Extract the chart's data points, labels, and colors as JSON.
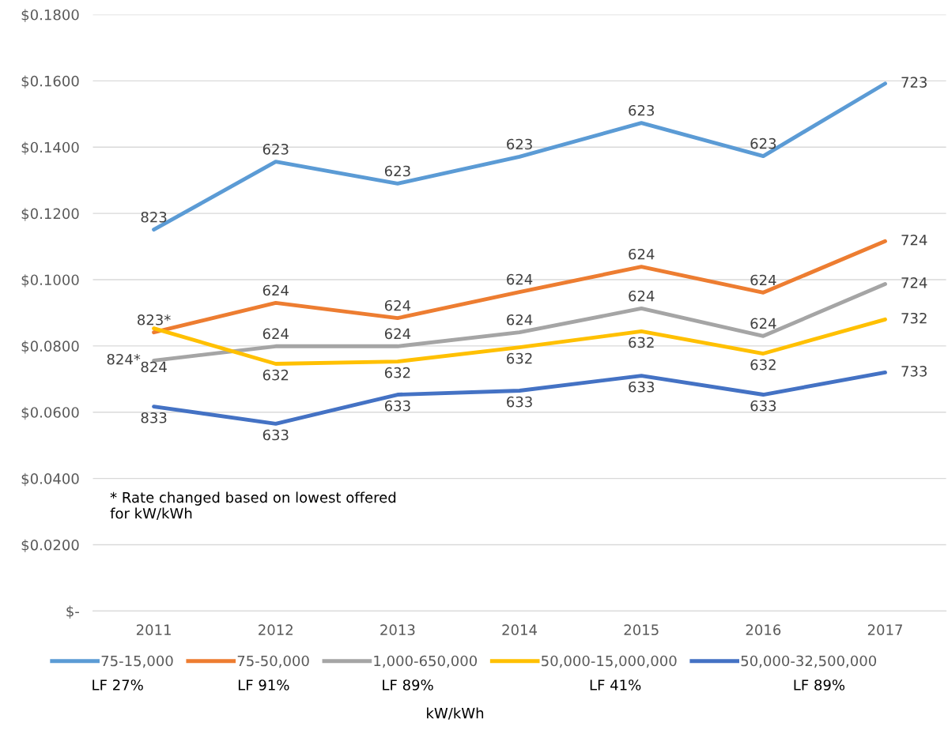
{
  "chart_data": {
    "type": "line",
    "categories": [
      "2011",
      "2012",
      "2013",
      "2014",
      "2015",
      "2016",
      "2017"
    ],
    "series": [
      {
        "name": "75-15,000",
        "color": "#5b9bd5",
        "values": [
          0.1151,
          0.1356,
          0.129,
          0.1371,
          0.1473,
          0.1373,
          0.1592
        ]
      },
      {
        "name": "75-50,000",
        "color": "#ed7d31",
        "values": [
          0.0841,
          0.093,
          0.0884,
          0.0963,
          0.1039,
          0.0961,
          0.1116
        ]
      },
      {
        "name": "1,000-650,000",
        "color": "#a5a5a5",
        "values": [
          0.0756,
          0.0799,
          0.0799,
          0.0841,
          0.0913,
          0.083,
          0.0987
        ]
      },
      {
        "name": "50,000-15,000,000",
        "color": "#ffc000",
        "values": [
          0.0853,
          0.0746,
          0.0753,
          0.0796,
          0.0844,
          0.0777,
          0.088
        ]
      },
      {
        "name": "50,000-32,500,000",
        "color": "#4472c4",
        "values": [
          0.0617,
          0.0565,
          0.0653,
          0.0665,
          0.071,
          0.0653,
          0.072
        ]
      }
    ],
    "ylim": [
      0,
      0.18
    ],
    "yticks": [
      {
        "value": 0,
        "label": "$-"
      },
      {
        "value": 0.02,
        "label": "$0.0200"
      },
      {
        "value": 0.04,
        "label": "$0.0400"
      },
      {
        "value": 0.06,
        "label": "$0.0600"
      },
      {
        "value": 0.08,
        "label": "$0.0800"
      },
      {
        "value": 0.1,
        "label": "$0.1000"
      },
      {
        "value": 0.12,
        "label": "$0.1200"
      },
      {
        "value": 0.14,
        "label": "$0.1400"
      },
      {
        "value": 0.16,
        "label": "$0.1600"
      },
      {
        "value": 0.18,
        "label": "$0.1800"
      }
    ],
    "grid": "y",
    "legend": "bottom",
    "marker": "none",
    "line_style": "solid",
    "annotations": [
      "* Rate changed based on lowest offered\nfor kW/kWh",
      "LF 27%",
      "LF 91%",
      "LF 89%",
      "LF 41%",
      "LF 89%",
      "kW/kWh",
      {
        "text": "823",
        "x": "2011",
        "y": 0.1151
      },
      {
        "text": "623",
        "x": "2012",
        "y": 0.1356
      },
      {
        "text": "623",
        "x": "2013",
        "y": 0.129
      },
      {
        "text": "623",
        "x": "2014",
        "y": 0.1371
      },
      {
        "text": "623",
        "x": "2015",
        "y": 0.1473
      },
      {
        "text": "623",
        "x": "2016",
        "y": 0.1373
      },
      {
        "text": "723",
        "x": "2017",
        "y": 0.1592
      },
      {
        "text": "823*",
        "x": "2011",
        "y": 0.0841
      },
      {
        "text": "624",
        "x": "2012",
        "y": 0.093
      },
      {
        "text": "624",
        "x": "2013",
        "y": 0.0884
      },
      {
        "text": "624",
        "x": "2014",
        "y": 0.0963
      },
      {
        "text": "624",
        "x": "2015",
        "y": 0.1039
      },
      {
        "text": "624",
        "x": "2016",
        "y": 0.0961
      },
      {
        "text": "724",
        "x": "2017",
        "y": 0.1116
      },
      {
        "text": "824*",
        "x": "2011",
        "y": 0.0756
      },
      {
        "text": "624",
        "x": "2012",
        "y": 0.0799
      },
      {
        "text": "624",
        "x": "2013",
        "y": 0.0799
      },
      {
        "text": "624",
        "x": "2014",
        "y": 0.0841
      },
      {
        "text": "624",
        "x": "2015",
        "y": 0.0913
      },
      {
        "text": "624",
        "x": "2016",
        "y": 0.083
      },
      {
        "text": "724",
        "x": "2017",
        "y": 0.0987
      },
      {
        "text": "824",
        "x": "2011",
        "y": 0.0853
      },
      {
        "text": "632",
        "x": "2012",
        "y": 0.0746
      },
      {
        "text": "632",
        "x": "2013",
        "y": 0.0753
      },
      {
        "text": "632",
        "x": "2014",
        "y": 0.0796
      },
      {
        "text": "632",
        "x": "2015",
        "y": 0.0844
      },
      {
        "text": "632",
        "x": "2016",
        "y": 0.0777
      },
      {
        "text": "732",
        "x": "2017",
        "y": 0.088
      },
      {
        "text": "833",
        "x": "2011",
        "y": 0.0617
      },
      {
        "text": "633",
        "x": "2012",
        "y": 0.0565
      },
      {
        "text": "633",
        "x": "2013",
        "y": 0.0653
      },
      {
        "text": "633",
        "x": "2014",
        "y": 0.0665
      },
      {
        "text": "633",
        "x": "2015",
        "y": 0.071
      },
      {
        "text": "633",
        "x": "2016",
        "y": 0.0653
      },
      {
        "text": "733",
        "x": "2017",
        "y": 0.072
      }
    ]
  }
}
